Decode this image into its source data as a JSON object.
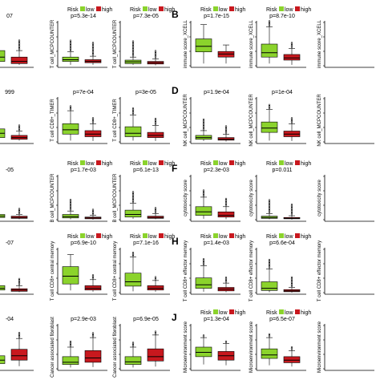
{
  "colors": {
    "low": "#8bd32c",
    "high": "#c8181e",
    "axis": "#000000"
  },
  "legend": {
    "title": "Risk",
    "low_label": "low",
    "high_label": "high"
  },
  "panels": [
    {
      "letter": "",
      "ylabel": "",
      "pvalue": "07",
      "legend": false,
      "low": [],
      "high": []
    },
    {
      "letter": "",
      "ylabel": "T cell_MCPCOUNTER",
      "pvalue": "p=5.3e-14",
      "legend": true
    },
    {
      "letter": "",
      "ylabel": "T cell_MCPCOUNTER",
      "pvalue": "p=7.3e-05",
      "legend": true
    },
    {
      "letter": "B",
      "ylabel": "immune score_XCELL",
      "pvalue": "p=1.7e-15",
      "legend": true
    },
    {
      "letter": "",
      "ylabel": "immune score_XCELL",
      "pvalue": "p=8.7e-10",
      "legend": true
    },
    {
      "letter": "",
      "ylabel": "immune score_XCELL",
      "pvalue": "",
      "legend": false
    },
    {
      "letter": "",
      "ylabel": "",
      "pvalue": "999",
      "legend": false
    },
    {
      "letter": "",
      "ylabel": "T cell CD8+_TIMER",
      "pvalue": "p=7e-04",
      "legend": false
    },
    {
      "letter": "",
      "ylabel": "T cell CD8+_TIMER",
      "pvalue": "p=3e-05",
      "legend": false
    },
    {
      "letter": "D",
      "ylabel": "NK cell_MCPCOUNTER",
      "pvalue": "p=1.9e-04",
      "legend": false
    },
    {
      "letter": "",
      "ylabel": "NK cell_MCPCOUNTER",
      "pvalue": "p=1e-04",
      "legend": false
    },
    {
      "letter": "",
      "ylabel": "NK cell_MCPCOUNTER",
      "pvalue": "",
      "legend": false
    },
    {
      "letter": "",
      "ylabel": "",
      "pvalue": "-05",
      "legend": false
    },
    {
      "letter": "",
      "ylabel": "B cell_MCPCOUNTER",
      "pvalue": "p=1.7e-03",
      "legend": true
    },
    {
      "letter": "",
      "ylabel": "B cell_MCPCOUNTER",
      "pvalue": "p=6.1e-13",
      "legend": true
    },
    {
      "letter": "F",
      "ylabel": "cytotoxicity score",
      "pvalue": "p=2.3e-03",
      "legend": true
    },
    {
      "letter": "",
      "ylabel": "cytotoxicity score",
      "pvalue": "p=0.011",
      "legend": true
    },
    {
      "letter": "",
      "ylabel": "cytotoxicity score",
      "pvalue": "",
      "legend": false
    },
    {
      "letter": "",
      "ylabel": "",
      "pvalue": "-07",
      "legend": false
    },
    {
      "letter": "",
      "ylabel": "T cell CD8+ central memory",
      "pvalue": "p=6.9e-10",
      "legend": true
    },
    {
      "letter": "",
      "ylabel": "T cell CD8+ central memory",
      "pvalue": "p=7.1e-16",
      "legend": true
    },
    {
      "letter": "H",
      "ylabel": "T cell CD8+ effector memory",
      "pvalue": "p=1.4e-03",
      "legend": true
    },
    {
      "letter": "",
      "ylabel": "T cell CD8+ effector memory",
      "pvalue": "p=6.6e-04",
      "legend": true
    },
    {
      "letter": "",
      "ylabel": "T cell CD8+ effector memory",
      "pvalue": "",
      "legend": false
    },
    {
      "letter": "",
      "ylabel": "",
      "pvalue": "-04",
      "legend": false
    },
    {
      "letter": "",
      "ylabel": "Cancer associated fibroblast",
      "pvalue": "p=2.9e-03",
      "legend": false
    },
    {
      "letter": "",
      "ylabel": "Cancer associated fibroblast",
      "pvalue": "p=6.9e-05",
      "legend": false
    },
    {
      "letter": "J",
      "ylabel": "Microenvironment score",
      "pvalue": "p=1.3e-04",
      "legend": true
    },
    {
      "letter": "",
      "ylabel": "Microenvironment score",
      "pvalue": "p=6.5e-07",
      "legend": true
    },
    {
      "letter": "",
      "ylabel": "Microenvironment score",
      "pvalue": "",
      "legend": false
    }
  ],
  "chart_data": {
    "type": "box",
    "groups": [
      "low",
      "high"
    ],
    "note": "Box-plot panels comparing low vs high risk groups; box statistics are relative (no tick labels legible).",
    "boxes": [
      [
        [
          0.05,
          0.1,
          0.2,
          0.35,
          0.6,
          0.3
        ],
        [
          0.02,
          0.05,
          0.1,
          0.2,
          0.35,
          0.5
        ]
      ],
      [
        [
          0.02,
          0.1,
          0.14,
          0.2,
          0.32,
          0.55
        ],
        [
          0.02,
          0.07,
          0.1,
          0.14,
          0.22,
          0.65
        ]
      ],
      [
        [
          0.02,
          0.05,
          0.09,
          0.13,
          0.2,
          0.75
        ],
        [
          0.01,
          0.04,
          0.07,
          0.1,
          0.16,
          0.4
        ]
      ],
      [
        [
          0.05,
          0.32,
          0.45,
          0.62,
          0.95,
          0
        ],
        [
          0.05,
          0.2,
          0.27,
          0.33,
          0.48,
          0
        ]
      ],
      [
        [
          0.05,
          0.2,
          0.3,
          0.5,
          0.9,
          0.3
        ],
        [
          0.02,
          0.13,
          0.18,
          0.26,
          0.4,
          0.25
        ]
      ],
      [
        [
          0,
          0,
          0,
          0,
          0,
          0
        ],
        [
          0,
          0,
          0,
          0,
          0,
          0
        ]
      ],
      [
        [
          0.05,
          0.1,
          0.2,
          0.3,
          0.45,
          0.3
        ],
        [
          0.03,
          0.06,
          0.1,
          0.15,
          0.25,
          0.3
        ]
      ],
      [
        [
          0.03,
          0.18,
          0.28,
          0.42,
          0.72,
          0.2
        ],
        [
          0.02,
          0.12,
          0.18,
          0.26,
          0.42,
          0.3
        ]
      ],
      [
        [
          0.03,
          0.12,
          0.2,
          0.35,
          0.62,
          0.35
        ],
        [
          0.02,
          0.1,
          0.15,
          0.22,
          0.38,
          0.35
        ]
      ],
      [
        [
          0.02,
          0.06,
          0.1,
          0.15,
          0.26,
          0.55
        ],
        [
          0.01,
          0.04,
          0.06,
          0.1,
          0.18,
          0.4
        ]
      ],
      [
        [
          0.03,
          0.22,
          0.32,
          0.46,
          0.75,
          0.2
        ],
        [
          0.02,
          0.12,
          0.18,
          0.25,
          0.42,
          0.3
        ]
      ],
      [
        [
          0,
          0,
          0,
          0,
          0,
          0
        ],
        [
          0,
          0,
          0,
          0,
          0,
          0
        ]
      ],
      [
        [
          0.02,
          0.05,
          0.08,
          0.12,
          0.2,
          0.4
        ],
        [
          0.01,
          0.03,
          0.05,
          0.08,
          0.12,
          0.3
        ]
      ],
      [
        [
          0.01,
          0.04,
          0.07,
          0.12,
          0.2,
          0.55
        ],
        [
          0.0,
          0.02,
          0.04,
          0.06,
          0.1,
          0.3
        ]
      ],
      [
        [
          0.02,
          0.06,
          0.12,
          0.22,
          0.38,
          0.55
        ],
        [
          0.01,
          0.03,
          0.05,
          0.08,
          0.14,
          0.3
        ]
      ],
      [
        [
          0.02,
          0.1,
          0.18,
          0.3,
          0.52,
          0.35
        ],
        [
          0.01,
          0.06,
          0.1,
          0.18,
          0.3,
          0.4
        ]
      ],
      [
        [
          0.01,
          0.03,
          0.05,
          0.08,
          0.14,
          0.65
        ],
        [
          0.0,
          0.02,
          0.03,
          0.05,
          0.09,
          0.55
        ]
      ],
      [
        [
          0,
          0,
          0,
          0,
          0,
          0
        ],
        [
          0,
          0,
          0,
          0,
          0,
          0
        ]
      ],
      [
        [
          0.02,
          0.06,
          0.1,
          0.16,
          0.28,
          0.45
        ],
        [
          0.01,
          0.03,
          0.06,
          0.09,
          0.16,
          0.35
        ]
      ],
      [
        [
          0.05,
          0.2,
          0.38,
          0.6,
          0.88,
          0
        ],
        [
          0.02,
          0.06,
          0.1,
          0.16,
          0.3,
          0.2
        ]
      ],
      [
        [
          0.03,
          0.15,
          0.25,
          0.45,
          0.82,
          0.2
        ],
        [
          0.02,
          0.06,
          0.1,
          0.16,
          0.28,
          0.15
        ]
      ],
      [
        [
          0.02,
          0.1,
          0.18,
          0.34,
          0.62,
          0.35
        ],
        [
          0.01,
          0.04,
          0.08,
          0.12,
          0.22,
          0.3
        ]
      ],
      [
        [
          0.01,
          0.05,
          0.1,
          0.25,
          0.55,
          0.45
        ],
        [
          0.0,
          0.02,
          0.04,
          0.07,
          0.12,
          0.5
        ]
      ],
      [
        [
          0,
          0,
          0,
          0,
          0,
          0
        ],
        [
          0,
          0,
          0,
          0,
          0,
          0
        ]
      ],
      [
        [
          0.05,
          0.12,
          0.2,
          0.3,
          0.48,
          0.3
        ],
        [
          0.06,
          0.2,
          0.3,
          0.45,
          0.7,
          0.25
        ]
      ],
      [
        [
          0.03,
          0.1,
          0.15,
          0.28,
          0.5,
          0.25
        ],
        [
          0.04,
          0.15,
          0.25,
          0.42,
          0.72,
          0.2
        ]
      ],
      [
        [
          0.03,
          0.1,
          0.16,
          0.28,
          0.5,
          0.2
        ],
        [
          0.05,
          0.18,
          0.28,
          0.46,
          0.78,
          0.15
        ]
      ],
      [
        [
          0.1,
          0.28,
          0.38,
          0.5,
          0.72,
          0.1
        ],
        [
          0.08,
          0.2,
          0.3,
          0.4,
          0.58,
          0.1
        ]
      ],
      [
        [
          0.08,
          0.24,
          0.32,
          0.46,
          0.72,
          0.15
        ],
        [
          0.05,
          0.14,
          0.2,
          0.28,
          0.42,
          0.15
        ]
      ],
      [
        [
          0,
          0,
          0,
          0,
          0,
          0
        ],
        [
          0,
          0,
          0,
          0,
          0,
          0
        ]
      ]
    ]
  }
}
